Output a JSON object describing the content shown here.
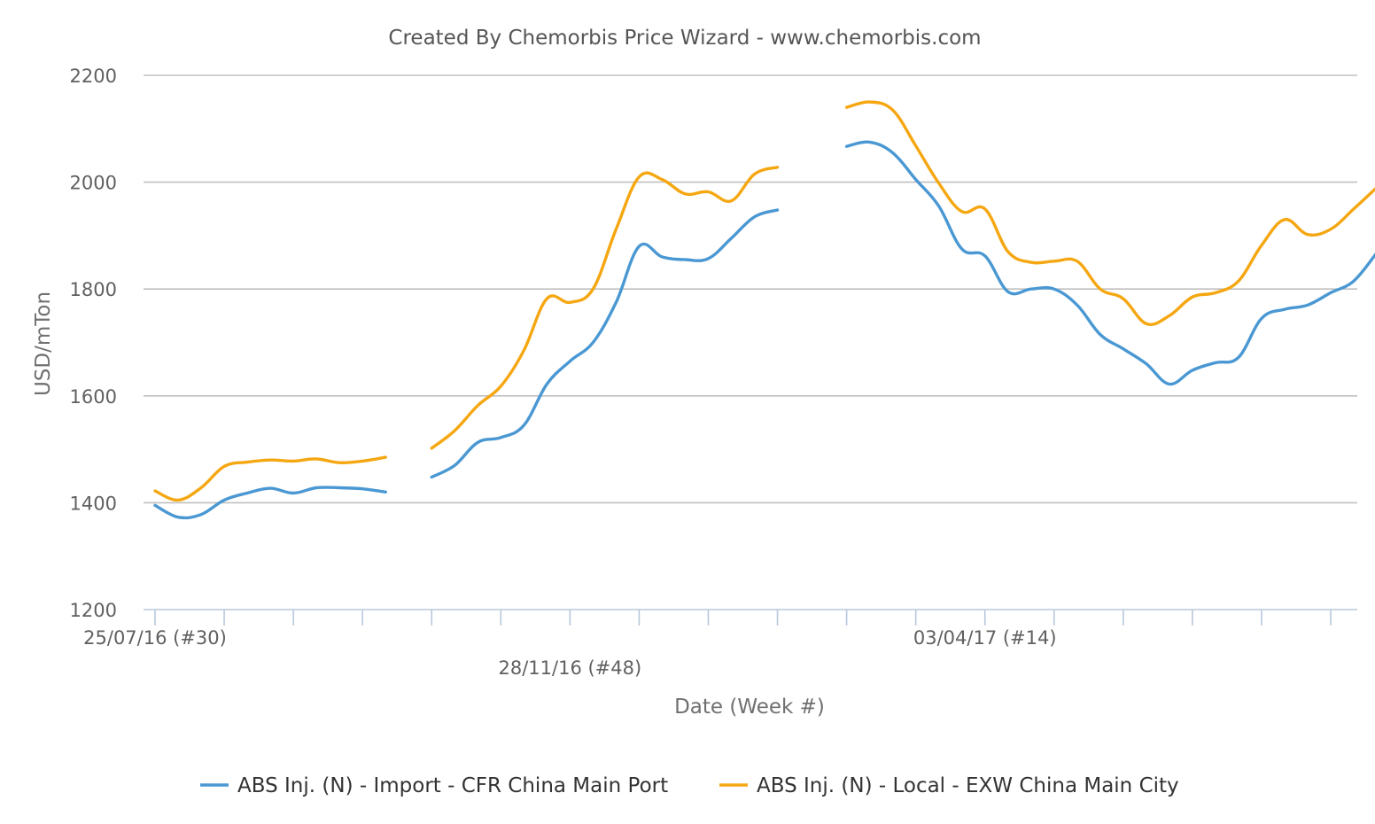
{
  "chart_data": {
    "type": "line",
    "title": "Created By Chemorbis Price Wizard - www.chemorbis.com",
    "xlabel": "Date (Week #)",
    "ylabel": "USD/mTon",
    "ylim": [
      1200,
      2200
    ],
    "yticks": [
      1200,
      1400,
      1600,
      1800,
      2000,
      2200
    ],
    "grid": true,
    "legend_position": "bottom",
    "x_tick_labels": [
      {
        "week": 0,
        "text": "25/07/16 (#30)"
      },
      {
        "week": 18,
        "text": "28/11/16 (#48)"
      },
      {
        "week": 36,
        "text": "03/04/17 (#14)"
      }
    ],
    "series": [
      {
        "name": "ABS Inj. (N) - Import - CFR China Main Port",
        "color": "#4a98d3",
        "segments": [
          [
            [
              0,
              1395
            ],
            [
              1,
              1373
            ],
            [
              2,
              1378
            ],
            [
              3,
              1405
            ],
            [
              4,
              1418
            ],
            [
              5,
              1427
            ],
            [
              6,
              1418
            ],
            [
              7,
              1428
            ],
            [
              8,
              1428
            ],
            [
              9,
              1426
            ],
            [
              10,
              1420
            ]
          ],
          [
            [
              12,
              1448
            ],
            [
              13,
              1470
            ],
            [
              14,
              1513
            ],
            [
              15,
              1522
            ],
            [
              16,
              1545
            ],
            [
              17,
              1622
            ],
            [
              18,
              1665
            ],
            [
              19,
              1700
            ],
            [
              20,
              1775
            ],
            [
              21,
              1880
            ],
            [
              22,
              1860
            ],
            [
              23,
              1855
            ],
            [
              24,
              1857
            ],
            [
              25,
              1895
            ],
            [
              26,
              1935
            ],
            [
              27,
              1948
            ]
          ],
          [
            [
              30,
              2067
            ],
            [
              31,
              2075
            ],
            [
              32,
              2055
            ],
            [
              33,
              2005
            ],
            [
              34,
              1955
            ],
            [
              35,
              1875
            ],
            [
              36,
              1862
            ],
            [
              37,
              1795
            ],
            [
              38,
              1800
            ],
            [
              39,
              1800
            ],
            [
              40,
              1770
            ],
            [
              41,
              1715
            ],
            [
              42,
              1688
            ],
            [
              43,
              1660
            ],
            [
              44,
              1622
            ],
            [
              45,
              1648
            ],
            [
              46,
              1662
            ],
            [
              47,
              1672
            ],
            [
              48,
              1745
            ],
            [
              49,
              1762
            ],
            [
              50,
              1770
            ],
            [
              51,
              1793
            ],
            [
              52,
              1815
            ],
            [
              53,
              1868
            ]
          ]
        ]
      },
      {
        "name": "ABS Inj. (N) - Local - EXW China Main City",
        "color": "#f5a712",
        "segments": [
          [
            [
              0,
              1422
            ],
            [
              1,
              1405
            ],
            [
              2,
              1428
            ],
            [
              3,
              1468
            ],
            [
              4,
              1476
            ],
            [
              5,
              1480
            ],
            [
              6,
              1478
            ],
            [
              7,
              1482
            ],
            [
              8,
              1475
            ],
            [
              9,
              1478
            ],
            [
              10,
              1485
            ]
          ],
          [
            [
              12,
              1502
            ],
            [
              13,
              1535
            ],
            [
              14,
              1582
            ],
            [
              15,
              1618
            ],
            [
              16,
              1685
            ],
            [
              17,
              1782
            ],
            [
              18,
              1775
            ],
            [
              19,
              1800
            ],
            [
              20,
              1912
            ],
            [
              21,
              2010
            ],
            [
              22,
              2005
            ],
            [
              23,
              1978
            ],
            [
              24,
              1982
            ],
            [
              25,
              1965
            ],
            [
              26,
              2015
            ],
            [
              27,
              2028
            ]
          ],
          [
            [
              30,
              2140
            ],
            [
              31,
              2150
            ],
            [
              32,
              2135
            ],
            [
              33,
              2068
            ],
            [
              34,
              1998
            ],
            [
              35,
              1945
            ],
            [
              36,
              1950
            ],
            [
              37,
              1870
            ],
            [
              38,
              1850
            ],
            [
              39,
              1852
            ],
            [
              40,
              1852
            ],
            [
              41,
              1800
            ],
            [
              42,
              1782
            ],
            [
              43,
              1735
            ],
            [
              44,
              1750
            ],
            [
              45,
              1785
            ],
            [
              46,
              1793
            ],
            [
              47,
              1815
            ],
            [
              48,
              1882
            ],
            [
              49,
              1930
            ],
            [
              50,
              1902
            ],
            [
              51,
              1912
            ],
            [
              52,
              1950
            ],
            [
              53,
              1990
            ]
          ]
        ]
      }
    ]
  }
}
